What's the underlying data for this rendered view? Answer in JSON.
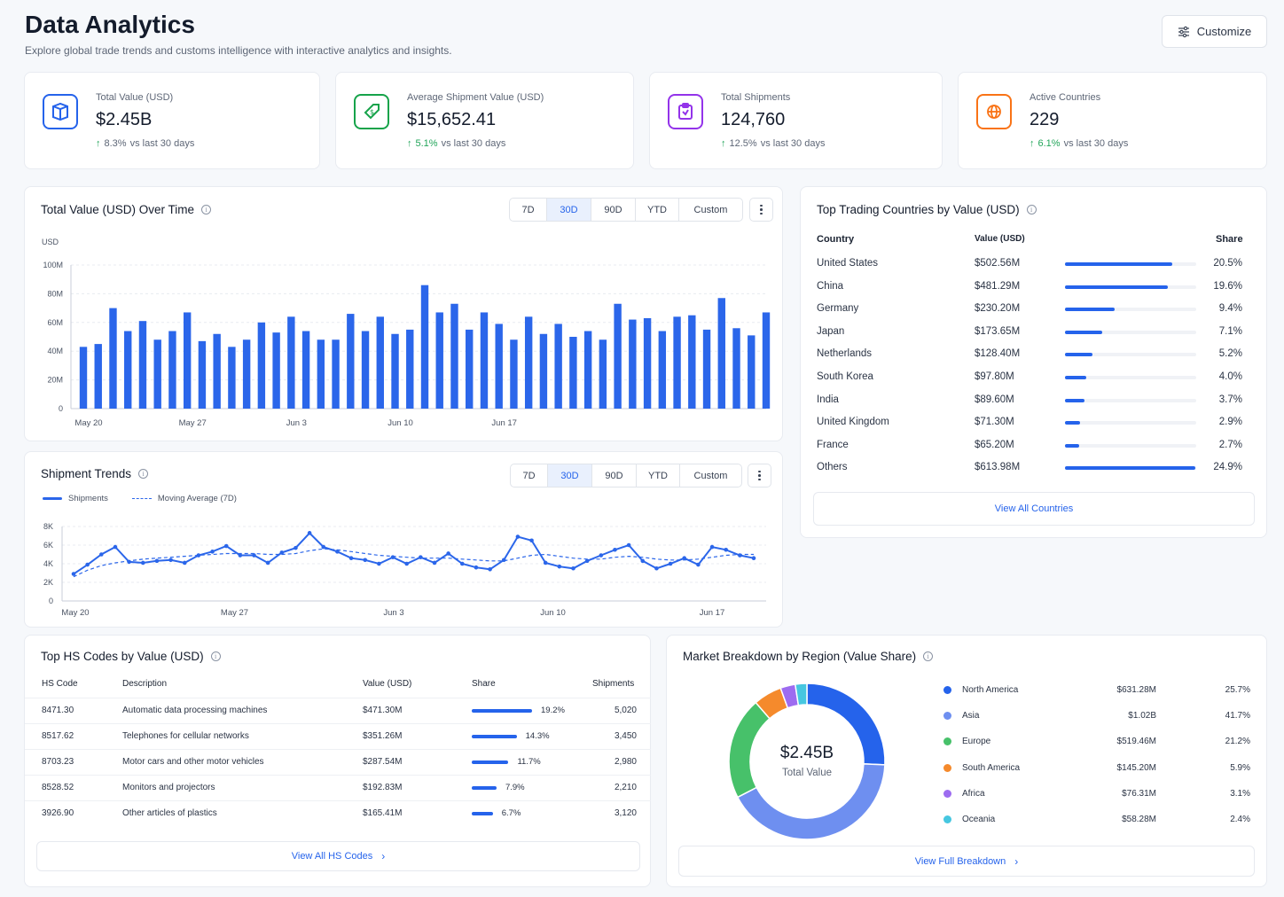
{
  "header": {
    "title": "Data Analytics",
    "subtitle": "Explore global trade trends and customs intelligence with interactive analytics and insights.",
    "customize_label": "Customize"
  },
  "kpis": [
    {
      "label": "Total Value (USD)",
      "value": "$2.45B",
      "delta": "8.3%",
      "delta_text": "vs last 30 days",
      "icon": "box-icon",
      "color": "#2563eb"
    },
    {
      "label": "Average Shipment Value (USD)",
      "value": "$15,652.41",
      "delta": "5.1%",
      "delta_text": "vs last 30 days",
      "icon": "dollar-tag-icon",
      "color": "#16a34a"
    },
    {
      "label": "Total Shipments",
      "value": "124,760",
      "delta": "12.5%",
      "delta_text": "vs last 30 days",
      "icon": "clipboard-icon",
      "color": "#9333ea"
    },
    {
      "label": "Active Countries",
      "value": "229",
      "delta": "6.1%",
      "delta_text": "vs last 30 days",
      "icon": "globe-icon",
      "color": "#f97316"
    }
  ],
  "range_options": [
    "7D",
    "30D",
    "90D",
    "YTD",
    "Custom"
  ],
  "range_selected": "30D",
  "value_chart": {
    "title": "Total Value (USD) Over Time",
    "unit": "USD"
  },
  "trend_chart": {
    "title": "Shipment Trends",
    "legend_shipments": "Shipments",
    "legend_ma": "Moving Average (7D)"
  },
  "chart_data": [
    {
      "type": "bar",
      "title": "Total Value (USD) Over Time",
      "ylabel": "USD",
      "ylim": [
        0,
        100
      ],
      "y_ticks": [
        "0",
        "20M",
        "40M",
        "60M",
        "80M",
        "100M"
      ],
      "x_ticks": [
        "May 20",
        "May 27",
        "Jun 3",
        "Jun 10",
        "Jun 17"
      ],
      "grid": true,
      "color": "#2b66ea",
      "values": [
        43,
        45,
        70,
        54,
        61,
        48,
        54,
        67,
        47,
        52,
        43,
        48,
        60,
        53,
        64,
        54,
        48,
        48,
        66,
        54,
        64,
        52,
        55,
        86,
        67,
        73,
        55,
        67,
        59,
        48,
        64,
        52,
        59,
        50,
        54,
        48,
        73,
        62,
        63,
        54,
        64,
        65,
        55,
        77,
        56,
        51,
        67
      ]
    },
    {
      "type": "line",
      "title": "Shipment Trends",
      "ylim": [
        0,
        8000
      ],
      "y_ticks": [
        "0",
        "2K",
        "4K",
        "6K",
        "8K"
      ],
      "x_ticks": [
        "May 20",
        "May 27",
        "Jun 3",
        "Jun 10",
        "Jun 17"
      ],
      "grid": true,
      "series": [
        {
          "name": "Shipments",
          "color": "#2b66ea",
          "values": [
            2900,
            3900,
            5000,
            5800,
            4200,
            4100,
            4300,
            4400,
            4100,
            4900,
            5300,
            5900,
            4900,
            4900,
            4100,
            5200,
            5700,
            7300,
            5800,
            5300,
            4600,
            4400,
            4000,
            4700,
            4000,
            4700,
            4100,
            5100,
            4000,
            3600,
            3400,
            4400,
            6900,
            6500,
            4100,
            3700,
            3500,
            4300,
            4900,
            5500,
            6000,
            4300,
            3500,
            4000,
            4600,
            3900,
            5800,
            5500,
            4900,
            4600
          ]
        },
        {
          "name": "Moving Average (7D)",
          "color": "#2b66ea",
          "dashed": true,
          "values": [
            2600,
            3300,
            3800,
            4100,
            4300,
            4500,
            4600,
            4700,
            4800,
            4900,
            5000,
            5100,
            5100,
            5100,
            5000,
            5000,
            5100,
            5400,
            5600,
            5500,
            5300,
            5100,
            4900,
            4800,
            4700,
            4600,
            4600,
            4600,
            4500,
            4400,
            4300,
            4300,
            4600,
            4900,
            5000,
            4800,
            4600,
            4500,
            4500,
            4700,
            4800,
            4700,
            4500,
            4400,
            4400,
            4500,
            4700,
            4900,
            5000,
            5000
          ]
        }
      ]
    },
    {
      "type": "pie",
      "title": "Market Breakdown by Region (Value Share)",
      "center_value": "$2.45B",
      "center_label": "Total Value",
      "slices": [
        {
          "name": "North America",
          "value": 25.7,
          "color": "#2563eb"
        },
        {
          "name": "Asia",
          "value": 41.7,
          "color": "#6e8ff0"
        },
        {
          "name": "Europe",
          "value": 21.2,
          "color": "#47c16a"
        },
        {
          "name": "South America",
          "value": 5.9,
          "color": "#f58a2c"
        },
        {
          "name": "Africa",
          "value": 3.1,
          "color": "#9d6cf0"
        },
        {
          "name": "Oceania",
          "value": 2.4,
          "color": "#46c7e0"
        }
      ]
    }
  ],
  "countries": {
    "title": "Top Trading Countries by Value (USD)",
    "headers": {
      "country": "Country",
      "value": "Value (USD)",
      "share": "Share"
    },
    "rows": [
      {
        "country": "United States",
        "value": "$502.56M",
        "share": "20.5%",
        "pct": 20.5
      },
      {
        "country": "China",
        "value": "$481.29M",
        "share": "19.6%",
        "pct": 19.6
      },
      {
        "country": "Germany",
        "value": "$230.20M",
        "share": "9.4%",
        "pct": 9.4
      },
      {
        "country": "Japan",
        "value": "$173.65M",
        "share": "7.1%",
        "pct": 7.1
      },
      {
        "country": "Netherlands",
        "value": "$128.40M",
        "share": "5.2%",
        "pct": 5.2
      },
      {
        "country": "South Korea",
        "value": "$97.80M",
        "share": "4.0%",
        "pct": 4.0
      },
      {
        "country": "India",
        "value": "$89.60M",
        "share": "3.7%",
        "pct": 3.7
      },
      {
        "country": "United Kingdom",
        "value": "$71.30M",
        "share": "2.9%",
        "pct": 2.9
      },
      {
        "country": "France",
        "value": "$65.20M",
        "share": "2.7%",
        "pct": 2.7
      },
      {
        "country": "Others",
        "value": "$613.98M",
        "share": "24.9%",
        "pct": 24.9
      }
    ],
    "view_all": "View All Countries"
  },
  "hs_codes": {
    "title": "Top HS Codes by Value (USD)",
    "headers": {
      "code": "HS Code",
      "desc": "Description",
      "value": "Value (USD)",
      "share": "Share",
      "shipments": "Shipments"
    },
    "rows": [
      {
        "code": "8471.30",
        "desc": "Automatic data processing machines",
        "value": "$471.30M",
        "share": "19.2%",
        "pct": 19.2,
        "shipments": "5,020"
      },
      {
        "code": "8517.62",
        "desc": "Telephones for cellular networks",
        "value": "$351.26M",
        "share": "14.3%",
        "pct": 14.3,
        "shipments": "3,450"
      },
      {
        "code": "8703.23",
        "desc": "Motor cars and other motor vehicles",
        "value": "$287.54M",
        "share": "11.7%",
        "pct": 11.7,
        "shipments": "2,980"
      },
      {
        "code": "8528.52",
        "desc": "Monitors and projectors",
        "value": "$192.83M",
        "share": "7.9%",
        "pct": 7.9,
        "shipments": "2,210"
      },
      {
        "code": "3926.90",
        "desc": "Other articles of plastics",
        "value": "$165.41M",
        "share": "6.7%",
        "pct": 6.7,
        "shipments": "3,120"
      }
    ],
    "view_all": "View All HS Codes"
  },
  "regions": {
    "title": "Market Breakdown by Region (Value Share)",
    "center_value": "$2.45B",
    "center_label": "Total Value",
    "rows": [
      {
        "name": "North America",
        "value": "$631.28M",
        "share": "25.7%",
        "color": "#2563eb"
      },
      {
        "name": "Asia",
        "value": "$1.02B",
        "share": "41.7%",
        "color": "#6e8ff0"
      },
      {
        "name": "Europe",
        "value": "$519.46M",
        "share": "21.2%",
        "color": "#47c16a"
      },
      {
        "name": "South America",
        "value": "$145.20M",
        "share": "5.9%",
        "color": "#f58a2c"
      },
      {
        "name": "Africa",
        "value": "$76.31M",
        "share": "3.1%",
        "color": "#9d6cf0"
      },
      {
        "name": "Oceania",
        "value": "$58.28M",
        "share": "2.4%",
        "color": "#46c7e0"
      }
    ],
    "view_all": "View Full Breakdown"
  }
}
